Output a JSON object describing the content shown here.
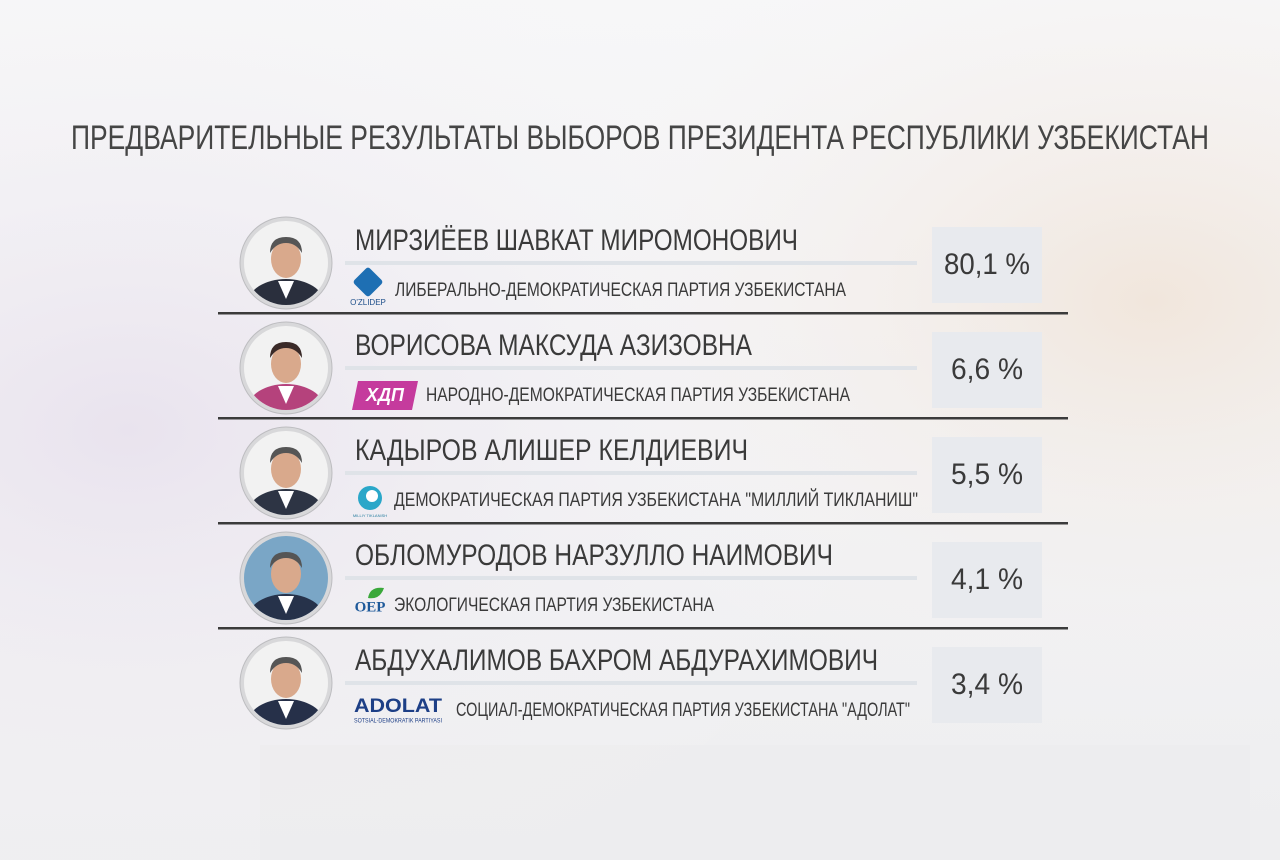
{
  "title": "ПРЕДВАРИТЕЛЬНЫЕ РЕЗУЛЬТАТЫ ВЫБОРОВ ПРЕЗИДЕНТА РЕСПУБЛИКИ УЗБЕКИСТАН",
  "candidates": [
    {
      "name": "МИРЗИЁЕВ ШАВКАТ МИРОМОНОВИЧ",
      "party": "ЛИБЕРАЛЬНО-ДЕМОКРАТИЧЕСКАЯ ПАРТИЯ УЗБЕКИСТАНА",
      "logo": "O'ZLIDEP",
      "result": "80,1 %"
    },
    {
      "name": "ВОРИСОВА МАКСУДА АЗИЗОВНА",
      "party": "НАРОДНО-ДЕМОКРАТИЧЕСКАЯ ПАРТИЯ УЗБЕКИСТАНА",
      "logo": "ХДП",
      "result": "6,6 %"
    },
    {
      "name": "КАДЫРОВ АЛИШЕР КЕЛДИЕВИЧ",
      "party": "ДЕМОКРАТИЧЕСКАЯ ПАРТИЯ УЗБЕКИСТАНА \"МИЛЛИЙ ТИКЛАНИШ\"",
      "logo": "MILLIY TIKLANISH",
      "result": "5,5 %"
    },
    {
      "name": "ОБЛОМУРОДОВ НАРЗУЛЛО НАИМОВИЧ",
      "party": "ЭКОЛОГИЧЕСКАЯ ПАРТИЯ УЗБЕКИСТАНА",
      "logo": "OEP",
      "result": "4,1 %"
    },
    {
      "name": "АБДУХАЛИМОВ БАХРОМ АБДУРАХИМОВИЧ",
      "party": "СОЦИАЛ-ДЕМОКРАТИЧЕСКАЯ ПАРТИЯ УЗБЕКИСТАНА \"АДОЛАТ\"",
      "logo": "ADOLAT",
      "logo_sub": "SOTSIAL-DEMOKRATIK PARTIYASI",
      "result": "3,4 %"
    }
  ]
}
